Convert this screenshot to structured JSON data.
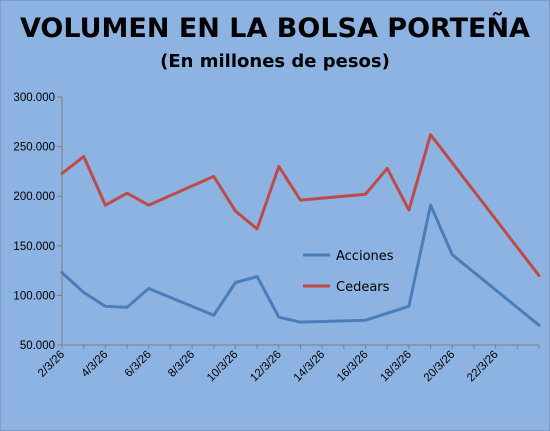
{
  "chart_data": {
    "type": "line",
    "title": "VOLUMEN EN LA BOLSA PORTEÑA",
    "subtitle": "(En millones de pesos)",
    "xlabel": "",
    "ylabel": "",
    "ylim": [
      50000,
      300000
    ],
    "y_ticks": [
      "50.000",
      "100.000",
      "150.000",
      "200.000",
      "250.000",
      "300.000"
    ],
    "x_ticks": [
      "2/3/26",
      "4/3/26",
      "6/3/26",
      "8/3/26",
      "10/3/26",
      "12/3/26",
      "14/3/26",
      "16/3/26",
      "18/3/26",
      "20/3/26",
      "22/3/26"
    ],
    "x_range": [
      "2/3/26",
      "24/3/26"
    ],
    "grid": false,
    "legend_position": "center-right",
    "series": [
      {
        "name": "Acciones",
        "color": "#4a7ebb",
        "points": [
          {
            "x": "2/3/26",
            "y": 123000
          },
          {
            "x": "3/3/26",
            "y": 103000
          },
          {
            "x": "4/3/26",
            "y": 89000
          },
          {
            "x": "5/3/26",
            "y": 88000
          },
          {
            "x": "6/3/26",
            "y": 107000
          },
          {
            "x": "9/3/26",
            "y": 80000
          },
          {
            "x": "10/3/26",
            "y": 113000
          },
          {
            "x": "11/3/26",
            "y": 119000
          },
          {
            "x": "12/3/26",
            "y": 78000
          },
          {
            "x": "13/3/26",
            "y": 73000
          },
          {
            "x": "16/3/26",
            "y": 75000
          },
          {
            "x": "18/3/26",
            "y": 89000
          },
          {
            "x": "19/3/26",
            "y": 191000
          },
          {
            "x": "20/3/26",
            "y": 141000
          },
          {
            "x": "24/3/26",
            "y": 70000
          }
        ]
      },
      {
        "name": "Cedears",
        "color": "#be4b48",
        "points": [
          {
            "x": "2/3/26",
            "y": 223000
          },
          {
            "x": "3/3/26",
            "y": 240000
          },
          {
            "x": "4/3/26",
            "y": 191000
          },
          {
            "x": "5/3/26",
            "y": 203000
          },
          {
            "x": "6/3/26",
            "y": 191000
          },
          {
            "x": "9/3/26",
            "y": 220000
          },
          {
            "x": "10/3/26",
            "y": 185000
          },
          {
            "x": "11/3/26",
            "y": 167000
          },
          {
            "x": "12/3/26",
            "y": 230000
          },
          {
            "x": "13/3/26",
            "y": 196000
          },
          {
            "x": "16/3/26",
            "y": 202000
          },
          {
            "x": "17/3/26",
            "y": 228000
          },
          {
            "x": "18/3/26",
            "y": 186000
          },
          {
            "x": "19/3/26",
            "y": 262000
          },
          {
            "x": "24/3/26",
            "y": 120000
          }
        ]
      }
    ]
  }
}
